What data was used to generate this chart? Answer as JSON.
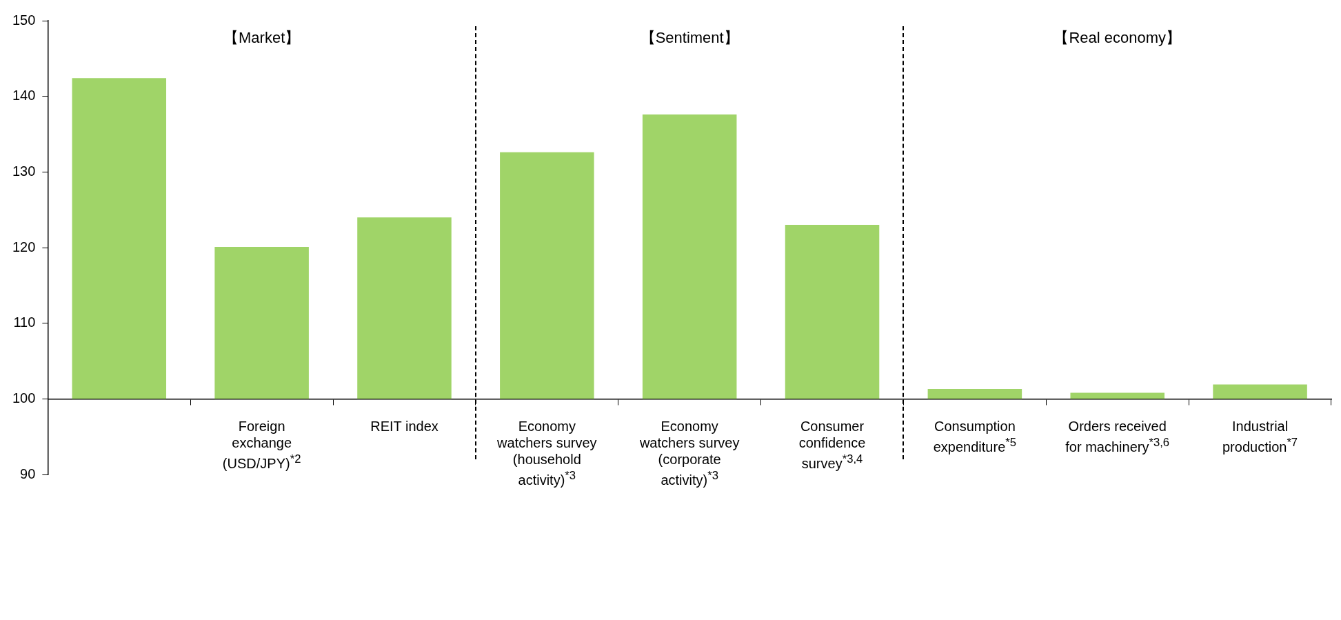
{
  "chart_data": {
    "type": "bar",
    "categories": [
      null,
      "Foreign exchange (USD/JPY)$^{*2}$",
      "REIT index",
      "Economy watchers survey (household activity)$^{*3}$",
      "Economy watchers survey (corporate activity)$^{*3}$",
      "Consumer confidence survey$^{*3,4}$",
      "Consumption expenditure$^{*5}$",
      "Orders received for machinery$^{*3,6}$",
      "Industrial production$^{*7}$"
    ],
    "base": [
      100,
      100,
      100,
      100,
      100,
      100,
      100,
      100,
      100
    ],
    "values": [
      42.4,
      20.1,
      24.0,
      32.6,
      37.6,
      23.0,
      1.3,
      0.8,
      1.9
    ],
    "color": "#a0d468",
    "ylim": [
      90,
      150
    ],
    "yticks": [
      90,
      100,
      110,
      120,
      130,
      140,
      150
    ],
    "annotations": [
      "【Market】",
      "【Sentiment】",
      "【Real economy】"
    ],
    "legend": false
  }
}
